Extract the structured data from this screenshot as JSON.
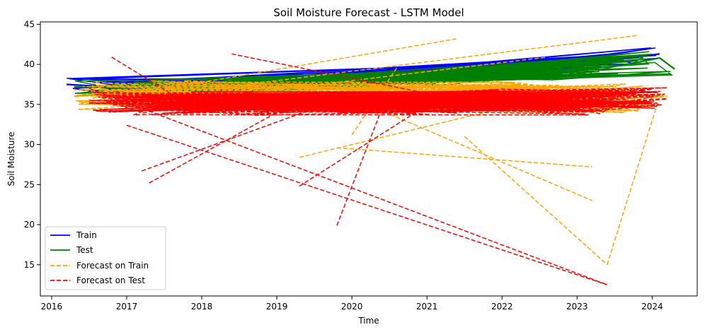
{
  "chart_data": {
    "type": "line",
    "title": "Soil Moisture Forecast - LSTM Model",
    "xlabel": "Time",
    "ylabel": "Soil Moisture",
    "xlim": [
      2015.85,
      2024.6
    ],
    "ylim": [
      11.1,
      45.3
    ],
    "x_ticks": [
      "2016",
      "2017",
      "2018",
      "2019",
      "2020",
      "2021",
      "2022",
      "2023",
      "2024"
    ],
    "y_ticks": [
      "15",
      "20",
      "25",
      "30",
      "35",
      "40",
      "45"
    ],
    "grid": false,
    "legend_position": "lower-left",
    "series": [
      {
        "name": "Train",
        "color": "#0000ff",
        "dash": "solid",
        "x": [
          2016.2,
          2016.6,
          2017.0,
          2017.5,
          2018.0,
          2018.5,
          2019.0,
          2019.5,
          2020.0,
          2020.5,
          2021.0,
          2021.5,
          2022.0,
          2022.5,
          2023.0,
          2023.5,
          2024.1
        ],
        "y": [
          37.5,
          37.3,
          37.0,
          37.2,
          37.6,
          37.8,
          38.0,
          38.2,
          38.4,
          38.6,
          38.9,
          39.2,
          39.5,
          39.8,
          40.2,
          40.6,
          41.3
        ]
      },
      {
        "name": "Test",
        "color": "#008000",
        "dash": "solid",
        "x": [
          2016.3,
          2017.0,
          2018.0,
          2019.0,
          2020.0,
          2021.0,
          2022.0,
          2023.0,
          2023.6,
          2024.1,
          2024.3
        ],
        "y": [
          37.2,
          37.0,
          37.3,
          37.7,
          38.0,
          38.4,
          38.8,
          39.3,
          39.9,
          40.8,
          39.4
        ]
      },
      {
        "name": "Forecast on Train",
        "color": "#ffa500",
        "dash": "dashed",
        "x": [
          2016.3,
          2017.1,
          2018.0,
          2019.1,
          2020.0,
          2021.2,
          2022.0,
          2023.1,
          2024.2
        ],
        "y": [
          36.0,
          36.5,
          36.2,
          35.7,
          36.1,
          35.9,
          36.3,
          35.5,
          36.0
        ]
      },
      {
        "name": "Forecast on Test",
        "color": "#ff0000",
        "dash": "dashed",
        "x": [
          2016.5,
          2017.3,
          2018.1,
          2019.0,
          2020.1,
          2021.0,
          2022.1,
          2023.0,
          2024.2
        ],
        "y": [
          35.2,
          35.0,
          35.4,
          34.9,
          35.3,
          35.1,
          35.6,
          35.0,
          35.7
        ]
      }
    ],
    "spikes": {
      "Forecast on Train": [
        [
          [
            2016.4,
            35.2
          ],
          [
            2021.4,
            43.2
          ]
        ],
        [
          [
            2018.6,
            37.5
          ],
          [
            2023.8,
            43.6
          ]
        ],
        [
          [
            2020.2,
            35.0
          ],
          [
            2023.2,
            23.0
          ]
        ],
        [
          [
            2019.3,
            28.4
          ],
          [
            2023.0,
            36.8
          ]
        ],
        [
          [
            2021.5,
            31.0
          ],
          [
            2023.4,
            15.0
          ]
        ],
        [
          [
            2023.4,
            15.0
          ],
          [
            2024.1,
            36.0
          ]
        ],
        [
          [
            2019.8,
            29.6
          ],
          [
            2023.2,
            27.2
          ]
        ],
        [
          [
            2020.0,
            31.2
          ],
          [
            2020.6,
            39.6
          ]
        ],
        [
          [
            2017.8,
            35.5
          ],
          [
            2022.6,
            40.9
          ]
        ]
      ],
      "Forecast on Test": [
        [
          [
            2016.8,
            40.9
          ],
          [
            2018.0,
            34.0
          ]
        ],
        [
          [
            2017.2,
            26.7
          ],
          [
            2020.0,
            36.2
          ]
        ],
        [
          [
            2017.3,
            25.2
          ],
          [
            2019.0,
            34.0
          ]
        ],
        [
          [
            2017.0,
            32.4
          ],
          [
            2023.4,
            12.5
          ]
        ],
        [
          [
            2018.4,
            41.3
          ],
          [
            2021.2,
            36.0
          ]
        ],
        [
          [
            2019.8,
            19.9
          ],
          [
            2020.4,
            34.5
          ]
        ],
        [
          [
            2019.3,
            24.8
          ],
          [
            2021.1,
            35.5
          ]
        ],
        [
          [
            2016.5,
            37.0
          ],
          [
            2023.4,
            12.5
          ]
        ]
      ]
    }
  }
}
